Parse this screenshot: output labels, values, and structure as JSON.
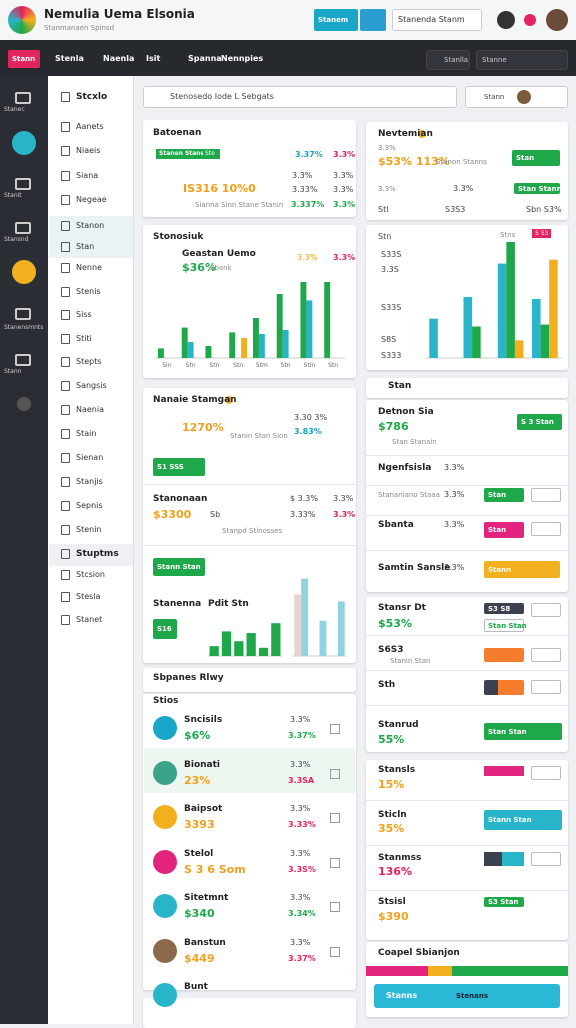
{
  "header": {
    "title": "Nemulia Uema Elsonia",
    "subtitle": "Stanmanaen Spinsd",
    "button": "Stanem",
    "search": "Stanenda Stanm"
  },
  "nav": {
    "active": "Stann",
    "items": [
      "Stenla",
      "Naenla",
      "Isit",
      "Spanna",
      "Nennpies"
    ],
    "search": "Stanlla",
    "filter": "Stanne"
  },
  "rail": [
    "Stanec",
    "Stanit",
    "Stansnd",
    "Stanensmnts",
    "Stann"
  ],
  "menu": [
    "Stcxlo",
    "Aanets",
    "Niaeis",
    "Siana",
    "Negeae",
    "Stanon",
    "Stan",
    "Nenne",
    "Stenis",
    "Siss",
    "Stiti",
    "Stepts",
    "Sangsis",
    "Naenia",
    "Stain",
    "Sienan",
    "Stanjis",
    "Sepnis",
    "Stenin",
    "Stuptms",
    "Stcsion",
    "Stesla",
    "Stanet"
  ],
  "search": "Stenosedo Iode L Sebgats",
  "toolbar": "Stann",
  "cards": [
    {
      "title": "Batoenan",
      "items": [
        "Stanen Stanemts",
        "Ste",
        "3.37%",
        "3.3%",
        "IS316 10%0",
        "3.3%",
        "3.3%",
        "3.33%",
        "3.3%",
        "Sianna Sinn Stane Stanin",
        "3.337%",
        "3.3%"
      ]
    },
    {
      "title": "Stonosiuk",
      "items": [
        "Geastan Uemo",
        "$36%",
        "Sbank",
        "3.3%",
        "3.3%"
      ]
    },
    {
      "title": "Nanaie Stamgan",
      "items": [
        "1270%",
        "3.30 3%",
        "3.83%",
        "Stanin Stan Sion",
        "S1 SSS",
        "Stanonaan",
        "$3300",
        "$ 3.3%",
        "3.3%",
        "Sb",
        "Stanpd Stinosses",
        "3.33%",
        "3.3%",
        "Stann Stan",
        "Stanenna",
        "Pdit Stn",
        "S16"
      ]
    },
    {
      "title": "Sbpanes Rlwy",
      "items": [
        "Stios"
      ]
    },
    {
      "title": "Nevtemian",
      "items": [
        "3.3%",
        "$53% 113%",
        "Stanon Stanns",
        "Stan",
        "Stan Stann",
        "3.3%",
        "3.3%",
        "S3S3",
        "Stl",
        "Sbn S3%",
        "Stn",
        "S33S",
        "3.3S",
        "S33S",
        "S8S",
        "S333",
        "S S3",
        "Stns"
      ]
    },
    {
      "title": "Stan",
      "items": [
        "Detnon Sia",
        "$786",
        "Stan Stanain",
        "S 3 Stan",
        "Ngenfsisla",
        "3.3%",
        "Stananiano Staaa",
        "3.3%",
        "Sbanta",
        "3.3%",
        "Samtin Sansle",
        "3.3%",
        "Stan",
        "Stan",
        "Stann"
      ]
    },
    {
      "items": [
        "Stansr Dt",
        "$53%",
        "S3 S8",
        "Stan Stan",
        "S6S3",
        "Stanin Stan",
        "Sth",
        "Stanrud",
        "55%",
        "Stan Stan"
      ]
    },
    {
      "items": [
        "Stansls",
        "15%",
        "Sticln",
        "35%",
        "Stann Stan",
        "Stanmss",
        "136%",
        "Stsisl",
        "$390",
        "S3 Stan"
      ]
    },
    {
      "title": "Coapel Sbianjon",
      "items": [
        "Stanns",
        "Stenans"
      ]
    }
  ],
  "list": [
    {
      "name": "Sncisils",
      "value": "$6%",
      "p1": "3.3%",
      "p2": "3.37%"
    },
    {
      "name": "Bionati",
      "value": "23%",
      "p1": "3.3%",
      "p2": "3.3SA"
    },
    {
      "name": "Baipsot",
      "value": "3393",
      "p1": "3.3%",
      "p2": "3.33%"
    },
    {
      "name": "Stelol",
      "value": "S 3 6 Som",
      "p1": "3.3%",
      "p2": "3.3S%"
    },
    {
      "name": "Sitetmnt",
      "value": "$340",
      "p1": "3.3%",
      "p2": "3.34%"
    },
    {
      "name": "Banstun",
      "value": "$449",
      "p1": "3.3%",
      "p2": "3.37%"
    },
    {
      "name": "Bunt"
    }
  ],
  "charts": [
    {
      "type": "bar",
      "categories": [
        "Sin",
        "Stn",
        "Stn",
        "Stn",
        "Stm",
        "Stn",
        "Stin",
        "Stn"
      ],
      "ylim": [
        0,
        100
      ],
      "series": [
        {
          "color": "#1fa84a",
          "values": [
            12,
            38,
            15,
            32,
            50,
            80,
            95,
            95
          ]
        },
        {
          "color": "#29b5c9",
          "values": [
            null,
            20,
            null,
            null,
            30,
            35,
            72,
            null
          ]
        },
        {
          "color": "#f2b01e",
          "values": [
            null,
            null,
            null,
            25,
            null,
            null,
            null,
            null
          ]
        }
      ]
    },
    {
      "type": "bar",
      "ylim": [
        0,
        120
      ],
      "series": [
        {
          "color": "#29b5c9",
          "values": [
            40,
            62,
            96,
            60
          ]
        },
        {
          "color": "#1fa84a",
          "values": [
            null,
            32,
            118,
            34
          ]
        },
        {
          "color": "#f2b01e",
          "values": [
            null,
            null,
            18,
            100
          ]
        }
      ]
    },
    {
      "type": "bar",
      "ylim": [
        0,
        50
      ],
      "series": [
        {
          "color": "#1fa84a",
          "values": [
            12,
            30,
            18,
            28,
            10,
            40
          ]
        }
      ]
    },
    {
      "type": "bar",
      "ylim": [
        0,
        100
      ],
      "series": [
        {
          "color": "#e8d3d3",
          "values": [
            70,
            null,
            null
          ]
        },
        {
          "color": "#8fd3df",
          "values": [
            88,
            40,
            62
          ]
        }
      ]
    }
  ]
}
